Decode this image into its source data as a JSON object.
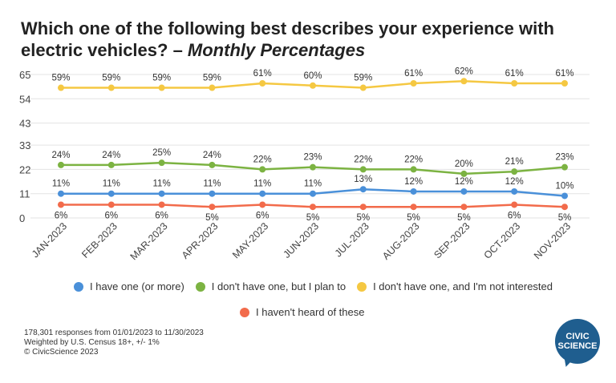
{
  "title": {
    "main": "Which one of the following best describes your experience with electric vehicles?",
    "dash": " – ",
    "sub": "Monthly Percentages"
  },
  "footer": {
    "line1": "178,301 responses from 01/01/2023 to 11/30/2023",
    "line2": "Weighted by U.S. Census 18+, +/- 1%",
    "line3": "© CivicScience 2023"
  },
  "logo": {
    "line1": "CIVIC",
    "line2": "SCIENCE"
  },
  "chart_data": {
    "type": "line",
    "title": "Which one of the following best describes your experience with electric vehicles? – Monthly Percentages",
    "xlabel": "",
    "ylabel": "",
    "ylim": [
      0,
      65
    ],
    "yticks": [
      0,
      11,
      22,
      33,
      43,
      54,
      65
    ],
    "grid": true,
    "legend_position": "bottom",
    "categories": [
      "JAN-2023",
      "FEB-2023",
      "MAR-2023",
      "APR-2023",
      "MAY-2023",
      "JUN-2023",
      "JUL-2023",
      "AUG-2023",
      "SEP-2023",
      "OCT-2023",
      "NOV-2023"
    ],
    "series": [
      {
        "name": "I have one (or more)",
        "color": "#4a90d9",
        "values": [
          11,
          11,
          11,
          11,
          11,
          11,
          13,
          12,
          12,
          12,
          10
        ],
        "labels": [
          "11%",
          "11%",
          "11%",
          "11%",
          "11%",
          "11%",
          "13%",
          "12%",
          "12%",
          "12%",
          "10%"
        ]
      },
      {
        "name": "I don't have one, but I plan to",
        "color": "#7cb342",
        "values": [
          24,
          24,
          25,
          24,
          22,
          23,
          22,
          22,
          20,
          21,
          23
        ],
        "labels": [
          "24%",
          "24%",
          "25%",
          "24%",
          "22%",
          "23%",
          "22%",
          "22%",
          "20%",
          "21%",
          "23%"
        ]
      },
      {
        "name": "I don't have one, and I'm not interested",
        "color": "#f5c842",
        "values": [
          59,
          59,
          59,
          59,
          61,
          60,
          59,
          61,
          62,
          61,
          61
        ],
        "labels": [
          "59%",
          "59%",
          "59%",
          "59%",
          "61%",
          "60%",
          "59%",
          "61%",
          "62%",
          "61%",
          "61%"
        ]
      },
      {
        "name": "I haven't heard of these",
        "color": "#f26b4b",
        "values": [
          6,
          6,
          6,
          5,
          6,
          5,
          5,
          5,
          5,
          6,
          5
        ],
        "labels": [
          "6%",
          "6%",
          "6%",
          "5%",
          "6%",
          "5%",
          "5%",
          "5%",
          "5%",
          "6%",
          "5%"
        ]
      }
    ]
  }
}
